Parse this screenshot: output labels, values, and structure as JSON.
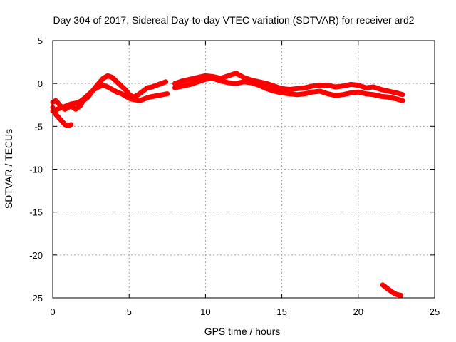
{
  "chart_data": {
    "type": "line",
    "title": "Day 304 of 2017, Sidereal Day-to-day VTEC variation (SDTVAR) for receiver ard2",
    "xlabel": "GPS time / hours",
    "ylabel": "SDTVAR / TECUs",
    "xlim": [
      0,
      25
    ],
    "ylim": [
      -25,
      5
    ],
    "xticks": [
      0,
      5,
      10,
      15,
      20,
      25
    ],
    "xtick_labels": [
      "0",
      "5",
      "10",
      "15",
      "20",
      "25"
    ],
    "yticks": [
      5,
      0,
      -5,
      -10,
      -15,
      -20,
      -25
    ],
    "ytick_labels": [
      "5",
      "0",
      "-5",
      "-10",
      "-15",
      "-20",
      "-25"
    ],
    "grid": true,
    "color": "#ff0000",
    "series": [
      {
        "name": "trace-1",
        "x": [
          0.0,
          0.2,
          0.4,
          0.6,
          0.8,
          1.0,
          1.2,
          1.5,
          1.8,
          2.0,
          2.3,
          2.6,
          2.9,
          3.1,
          3.3,
          3.6,
          3.9,
          4.2,
          4.5,
          4.8,
          5.0,
          5.3,
          5.6,
          5.9,
          6.2,
          6.5,
          6.8,
          7.1,
          7.4
        ],
        "y": [
          -2.2,
          -2.0,
          -2.4,
          -2.8,
          -3.0,
          -2.8,
          -2.6,
          -3.0,
          -2.6,
          -2.0,
          -1.6,
          -0.9,
          -0.2,
          0.2,
          0.6,
          0.9,
          0.7,
          0.2,
          -0.3,
          -0.8,
          -1.3,
          -1.6,
          -1.3,
          -0.9,
          -0.5,
          -0.4,
          -0.2,
          0.0,
          0.2
        ]
      },
      {
        "name": "trace-2",
        "x": [
          0.0,
          0.3,
          0.6,
          0.9,
          1.2,
          1.5,
          1.8,
          2.1,
          2.4,
          2.7,
          3.0,
          3.3,
          3.6,
          3.9,
          4.2,
          4.5,
          4.8,
          5.1,
          5.4,
          5.7,
          6.0,
          6.3,
          6.6,
          6.9,
          7.2,
          7.5
        ],
        "y": [
          -3.2,
          -3.0,
          -2.8,
          -2.6,
          -2.4,
          -2.3,
          -2.1,
          -1.7,
          -1.2,
          -0.7,
          -0.4,
          -0.2,
          -0.4,
          -0.7,
          -1.0,
          -1.2,
          -1.5,
          -1.8,
          -1.9,
          -2.0,
          -1.8,
          -1.6,
          -1.5,
          -1.4,
          -1.3,
          -1.2
        ]
      },
      {
        "name": "trace-3",
        "x": [
          0.0,
          0.2,
          0.4,
          0.6,
          0.8,
          1.0,
          1.2
        ],
        "y": [
          -2.8,
          -3.6,
          -4.0,
          -4.4,
          -4.8,
          -4.9,
          -4.8
        ]
      },
      {
        "name": "trace-4",
        "x": [
          8.0,
          8.5,
          9.0,
          9.5,
          10.0,
          10.5,
          11.0,
          11.5,
          12.0,
          12.5,
          13.0,
          13.5,
          14.0,
          14.5,
          15.0,
          15.5,
          16.0,
          16.5,
          17.0,
          17.5,
          18.0,
          18.5,
          19.0,
          19.5,
          20.0,
          20.5,
          21.0,
          21.5,
          22.0,
          22.5,
          22.9
        ],
        "y": [
          0.0,
          0.3,
          0.5,
          0.7,
          0.9,
          0.8,
          0.6,
          0.9,
          1.2,
          0.7,
          0.4,
          0.2,
          0.0,
          -0.3,
          -0.6,
          -0.7,
          -0.6,
          -0.5,
          -0.3,
          -0.2,
          -0.2,
          -0.4,
          -0.3,
          -0.1,
          -0.2,
          -0.5,
          -0.4,
          -0.7,
          -0.9,
          -1.1,
          -1.3
        ]
      },
      {
        "name": "trace-5",
        "x": [
          8.0,
          8.5,
          9.0,
          9.5,
          10.0,
          10.5,
          11.0,
          11.5,
          12.0,
          12.5,
          13.0,
          13.5,
          14.0,
          14.5,
          15.0,
          15.5,
          16.0,
          16.5,
          17.0,
          17.5,
          18.0,
          18.5,
          19.0,
          19.5,
          20.0,
          20.5,
          21.0,
          21.5,
          22.0,
          22.5,
          22.9
        ],
        "y": [
          -0.5,
          -0.3,
          -0.1,
          0.2,
          0.5,
          0.6,
          0.3,
          0.1,
          0.0,
          0.2,
          0.1,
          -0.2,
          -0.6,
          -0.9,
          -1.1,
          -1.2,
          -1.3,
          -1.2,
          -1.0,
          -0.9,
          -1.2,
          -1.4,
          -1.3,
          -1.1,
          -1.0,
          -1.2,
          -1.3,
          -1.5,
          -1.6,
          -1.8,
          -2.0
        ]
      },
      {
        "name": "trace-6",
        "x": [
          21.6,
          21.9,
          22.2,
          22.5,
          22.8
        ],
        "y": [
          -23.5,
          -23.9,
          -24.3,
          -24.6,
          -24.7
        ]
      }
    ]
  }
}
